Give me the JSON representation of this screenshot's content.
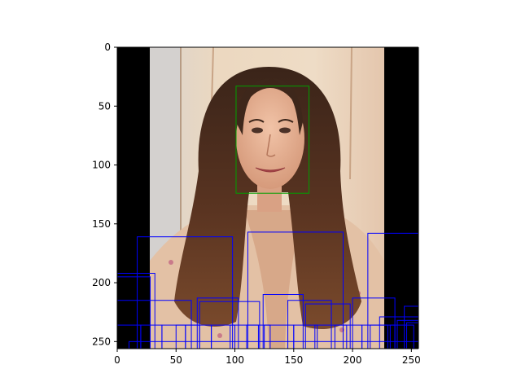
{
  "chart_data": {
    "type": "image",
    "xlim": [
      0,
      256
    ],
    "ylim": [
      256,
      0
    ],
    "xticks": [
      0,
      50,
      100,
      150,
      200,
      250
    ],
    "yticks": [
      0,
      50,
      100,
      150,
      200,
      250
    ],
    "xtick_labels": [
      "0",
      "50",
      "100",
      "150",
      "200",
      "250"
    ],
    "ytick_labels": [
      "0",
      "50",
      "100",
      "150",
      "200",
      "250"
    ],
    "image": {
      "description": "portrait photo",
      "extent_x": [
        28,
        228
      ],
      "extent_y": [
        0,
        256
      ],
      "side_fill": "#000000"
    },
    "boxes": [
      {
        "label": "face",
        "color": "#00a000",
        "x0": 101,
        "y0": 33,
        "x1": 163,
        "y1": 124
      },
      {
        "color": "#0000ff",
        "x0": 17,
        "y0": 161,
        "x1": 98,
        "y1": 256
      },
      {
        "color": "#0000ff",
        "x0": 111,
        "y0": 157,
        "x1": 192,
        "y1": 256
      },
      {
        "color": "#0000ff",
        "x0": 213,
        "y0": 158,
        "x1": 256,
        "y1": 256
      },
      {
        "color": "#0000ff",
        "x0": 0,
        "y0": 192,
        "x1": 32,
        "y1": 256
      },
      {
        "color": "#0000ff",
        "x0": 0,
        "y0": 195,
        "x1": 28,
        "y1": 256
      },
      {
        "color": "#0000ff",
        "x0": 0,
        "y0": 215,
        "x1": 63,
        "y1": 256
      },
      {
        "color": "#0000ff",
        "x0": 68,
        "y0": 213,
        "x1": 103,
        "y1": 256
      },
      {
        "color": "#0000ff",
        "x0": 70,
        "y0": 216,
        "x1": 121,
        "y1": 256
      },
      {
        "color": "#0000ff",
        "x0": 124,
        "y0": 210,
        "x1": 158,
        "y1": 256
      },
      {
        "color": "#0000ff",
        "x0": 145,
        "y0": 215,
        "x1": 182,
        "y1": 256
      },
      {
        "color": "#0000ff",
        "x0": 160,
        "y0": 218,
        "x1": 198,
        "y1": 256
      },
      {
        "color": "#0000ff",
        "x0": 200,
        "y0": 213,
        "x1": 236,
        "y1": 256
      },
      {
        "color": "#0000ff",
        "x0": 223,
        "y0": 229,
        "x1": 256,
        "y1": 256
      },
      {
        "color": "#0000ff",
        "x0": 244,
        "y0": 220,
        "x1": 256,
        "y1": 256
      },
      {
        "color": "#0000ff",
        "x0": 0,
        "y0": 236,
        "x1": 20,
        "y1": 256
      },
      {
        "color": "#0000ff",
        "x0": 20,
        "y0": 236,
        "x1": 38,
        "y1": 256
      },
      {
        "color": "#0000ff",
        "x0": 38,
        "y0": 236,
        "x1": 58,
        "y1": 256
      },
      {
        "color": "#0000ff",
        "x0": 50,
        "y0": 236,
        "x1": 70,
        "y1": 256
      },
      {
        "color": "#0000ff",
        "x0": 58,
        "y0": 236,
        "x1": 80,
        "y1": 256
      },
      {
        "color": "#0000ff",
        "x0": 80,
        "y0": 236,
        "x1": 100,
        "y1": 256
      },
      {
        "color": "#0000ff",
        "x0": 96,
        "y0": 236,
        "x1": 120,
        "y1": 256
      },
      {
        "color": "#0000ff",
        "x0": 110,
        "y0": 236,
        "x1": 130,
        "y1": 256
      },
      {
        "color": "#0000ff",
        "x0": 125,
        "y0": 236,
        "x1": 150,
        "y1": 256
      },
      {
        "color": "#0000ff",
        "x0": 150,
        "y0": 236,
        "x1": 170,
        "y1": 256
      },
      {
        "color": "#0000ff",
        "x0": 168,
        "y0": 236,
        "x1": 195,
        "y1": 256
      },
      {
        "color": "#0000ff",
        "x0": 185,
        "y0": 236,
        "x1": 208,
        "y1": 256
      },
      {
        "color": "#0000ff",
        "x0": 208,
        "y0": 236,
        "x1": 230,
        "y1": 256
      },
      {
        "color": "#0000ff",
        "x0": 215,
        "y0": 236,
        "x1": 236,
        "y1": 256
      },
      {
        "color": "#0000ff",
        "x0": 232,
        "y0": 236,
        "x1": 252,
        "y1": 256
      },
      {
        "color": "#0000ff",
        "x0": 238,
        "y0": 232,
        "x1": 256,
        "y1": 256
      },
      {
        "color": "#0000ff",
        "x0": 246,
        "y0": 234,
        "x1": 256,
        "y1": 256
      },
      {
        "color": "#0000ff",
        "x0": 10,
        "y0": 250,
        "x1": 256,
        "y1": 256
      }
    ]
  }
}
